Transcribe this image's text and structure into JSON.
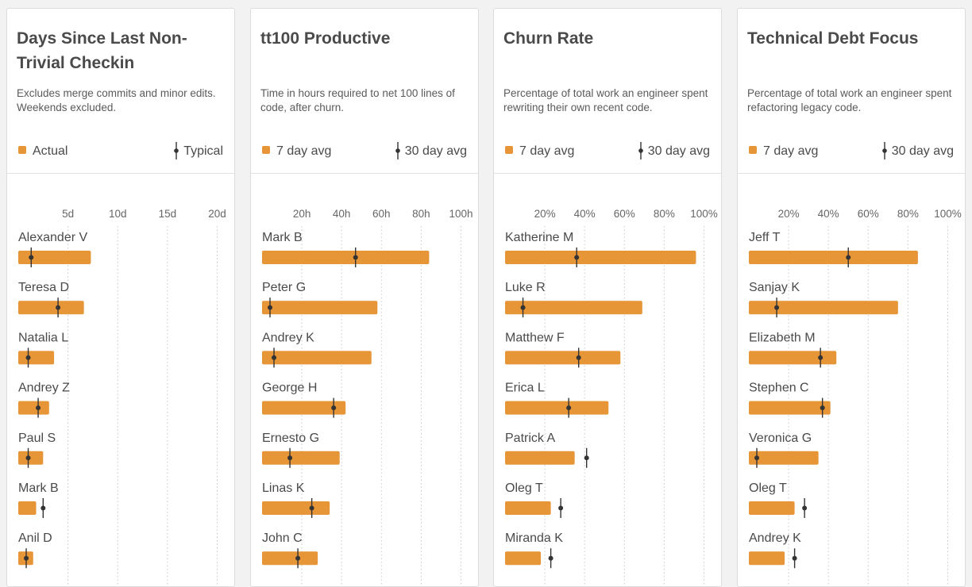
{
  "colors": {
    "bar": "#e69537",
    "marker": "#333333",
    "grid": "#c8c8c8",
    "tick": "#666666",
    "name": "#4a4a4a"
  },
  "chart_data": [
    {
      "type": "bar",
      "title": "Days Since Last Non-Trivial Checkin",
      "subtitle": "Excludes merge commits and minor edits. Weekends excluded.",
      "legend": {
        "bar": "Actual",
        "marker": "Typical"
      },
      "xlim": [
        0,
        21.4
      ],
      "ticks": [
        5,
        10,
        15,
        20
      ],
      "tick_labels": [
        "5d",
        "10d",
        "15d",
        "20d"
      ],
      "grid": true,
      "categories": [
        "Alexander V",
        "Teresa D",
        "Natalia L",
        "Andrey Z",
        "Paul S",
        "Mark B",
        "Anil D"
      ],
      "series": [
        {
          "name": "Actual",
          "values": [
            7.3,
            6.6,
            3.6,
            3.1,
            2.5,
            1.8,
            1.5
          ]
        },
        {
          "name": "Typical",
          "values": [
            1.3,
            4.0,
            1.0,
            2.0,
            1.0,
            2.5,
            0.8
          ]
        }
      ]
    },
    {
      "type": "bar",
      "title": "tt100 Productive",
      "subtitle": "Time in hours required to net 100 lines of code, after churn.",
      "legend": {
        "bar": "7 day avg",
        "marker": "30 day avg"
      },
      "xlim": [
        0,
        107
      ],
      "ticks": [
        20,
        40,
        60,
        80,
        100
      ],
      "tick_labels": [
        "20h",
        "40h",
        "60h",
        "80h",
        "100h"
      ],
      "grid": true,
      "categories": [
        "Mark B",
        "Peter G",
        "Andrey K",
        "George H",
        "Ernesto G",
        "Linas K",
        "John C"
      ],
      "series": [
        {
          "name": "7 day avg",
          "values": [
            84,
            58,
            55,
            42,
            39,
            34,
            28
          ]
        },
        {
          "name": "30 day avg",
          "values": [
            47,
            4,
            6,
            36,
            14,
            25,
            18
          ]
        }
      ]
    },
    {
      "type": "bar",
      "title": "Churn Rate",
      "subtitle": "Percentage of total work an engineer spent rewriting their own recent code.",
      "legend": {
        "bar": "7 day avg",
        "marker": "30 day avg"
      },
      "xlim": [
        0,
        107
      ],
      "ticks": [
        20,
        40,
        60,
        80,
        100
      ],
      "tick_labels": [
        "20%",
        "40%",
        "60%",
        "80%",
        "100%"
      ],
      "grid": true,
      "categories": [
        "Katherine M",
        "Luke R",
        "Matthew F",
        "Erica L",
        "Patrick A",
        "Oleg T",
        "Miranda K"
      ],
      "series": [
        {
          "name": "7 day avg",
          "values": [
            96,
            69,
            58,
            52,
            35,
            23,
            18
          ]
        },
        {
          "name": "30 day avg",
          "values": [
            36,
            9,
            37,
            32,
            41,
            28,
            23
          ]
        }
      ]
    },
    {
      "type": "bar",
      "title": "Technical Debt Focus",
      "subtitle": "Percentage of total work an engineer spent refactoring legacy code.",
      "legend": {
        "bar": "7 day avg",
        "marker": "30 day avg"
      },
      "xlim": [
        0,
        107
      ],
      "ticks": [
        20,
        40,
        60,
        80,
        100
      ],
      "tick_labels": [
        "20%",
        "40%",
        "60%",
        "80%",
        "100%"
      ],
      "grid": true,
      "categories": [
        "Jeff T",
        "Sanjay K",
        "Elizabeth M",
        "Stephen C",
        "Veronica G",
        "Oleg T",
        "Andrey K"
      ],
      "series": [
        {
          "name": "7 day avg",
          "values": [
            85,
            75,
            44,
            41,
            35,
            23,
            18
          ]
        },
        {
          "name": "30 day avg",
          "values": [
            50,
            14,
            36,
            37,
            4,
            28,
            23
          ]
        }
      ]
    }
  ]
}
